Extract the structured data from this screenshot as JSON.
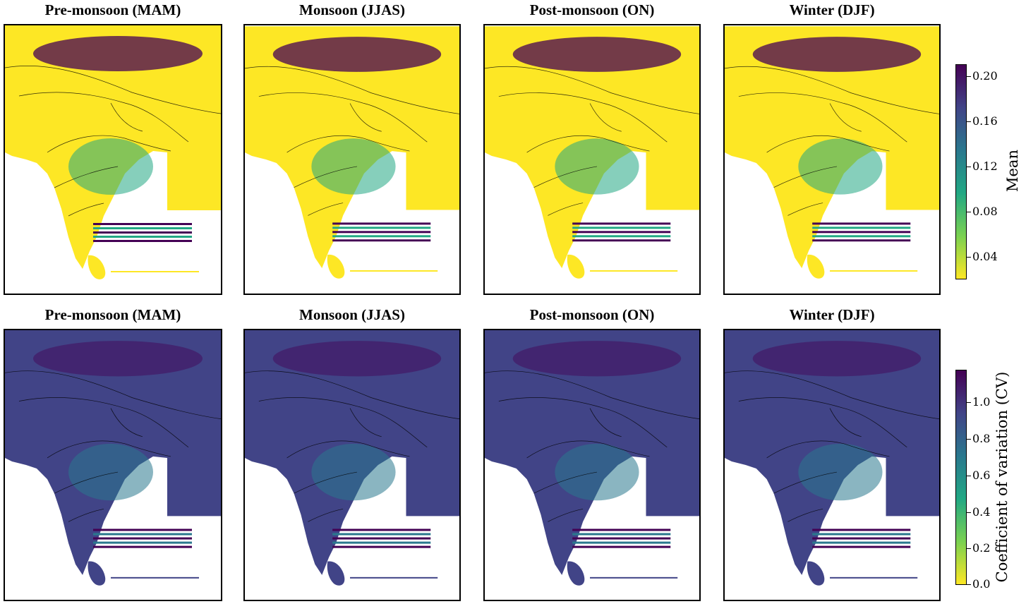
{
  "figure": {
    "rows": [
      {
        "id": "mean",
        "panels": [
          {
            "title": "Pre-monsoon (MAM)"
          },
          {
            "title": "Monsoon (JJAS)"
          },
          {
            "title": "Post-monsoon (ON)"
          },
          {
            "title": "Winter (DJF)"
          }
        ],
        "colorbar": {
          "label": "Mean",
          "ticks": [
            "0.20",
            "0.16",
            "0.12",
            "0.08",
            "0.04"
          ],
          "range": [
            0.02,
            0.21
          ],
          "colormap": "viridis_r",
          "colors": [
            "#fde725",
            "#7ad151",
            "#22a884",
            "#2a788e",
            "#414487",
            "#440154"
          ]
        }
      },
      {
        "id": "cv",
        "panels": [
          {
            "title": "Pre-monsoon (MAM)"
          },
          {
            "title": "Monsoon (JJAS)"
          },
          {
            "title": "Post-monsoon (ON)"
          },
          {
            "title": "Winter (DJF)"
          }
        ],
        "colorbar": {
          "label": "Coefficient of variation (CV)",
          "ticks": [
            "1.0",
            "0.8",
            "0.6",
            "0.4",
            "0.2",
            "0.0"
          ],
          "range": [
            0.0,
            1.15
          ],
          "colormap": "viridis_r",
          "colors": [
            "#fde725",
            "#7ad151",
            "#22a884",
            "#2a788e",
            "#414487",
            "#440154"
          ]
        }
      }
    ]
  }
}
